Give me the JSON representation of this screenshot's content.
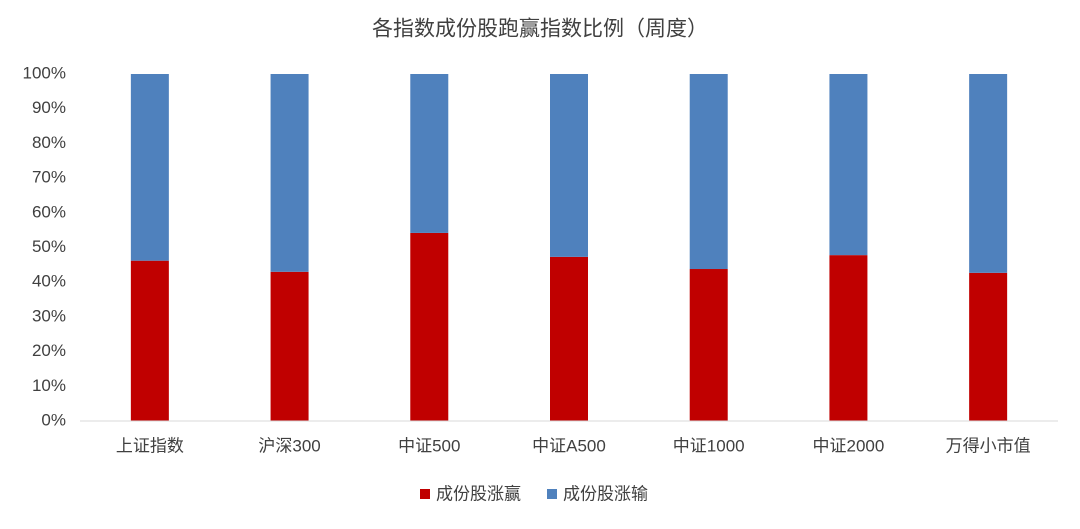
{
  "chart_data": {
    "type": "stacked_bar",
    "title": "各指数成份股跑赢指数比例（周度）",
    "categories": [
      "上证指数",
      "沪深300",
      "中证500",
      "中证A500",
      "中证1000",
      "中证2000",
      "万得小市值"
    ],
    "series": [
      {
        "name": "成份股涨赢",
        "color": "#c00000",
        "values": [
          46.2,
          43.0,
          54.2,
          47.3,
          43.8,
          47.8,
          42.7
        ]
      },
      {
        "name": "成份股涨输",
        "color": "#4f81bd",
        "values": [
          53.8,
          57.0,
          45.8,
          52.7,
          56.2,
          52.2,
          57.3
        ]
      }
    ],
    "ylim": [
      0,
      100
    ],
    "yticks": [
      {
        "value": 0,
        "label": "0%"
      },
      {
        "value": 10,
        "label": "10%"
      },
      {
        "value": 20,
        "label": "20%"
      },
      {
        "value": 30,
        "label": "30%"
      },
      {
        "value": 40,
        "label": "40%"
      },
      {
        "value": 50,
        "label": "50%"
      },
      {
        "value": 60,
        "label": "60%"
      },
      {
        "value": 70,
        "label": "70%"
      },
      {
        "value": 80,
        "label": "80%"
      },
      {
        "value": 90,
        "label": "90%"
      },
      {
        "value": 100,
        "label": "100%"
      }
    ],
    "grid": false,
    "legend": "bottom"
  }
}
